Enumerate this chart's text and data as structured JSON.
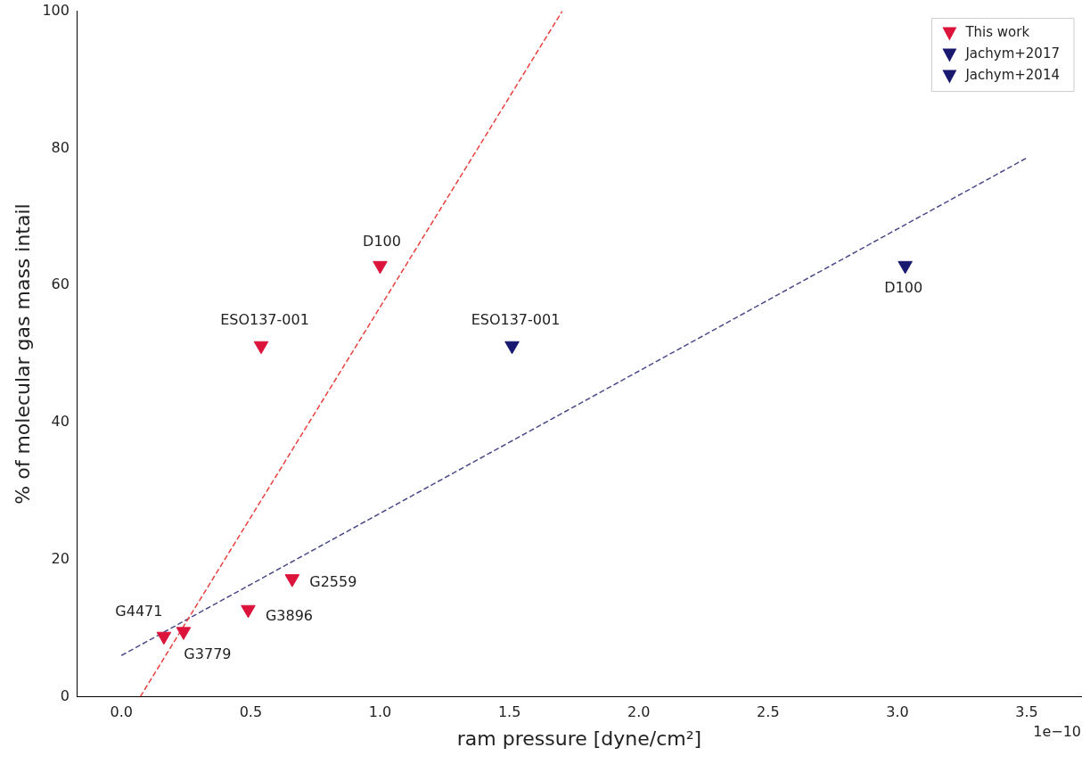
{
  "chart_data": {
    "type": "scatter",
    "xlabel": "ram pressure [dyne/cm²]",
    "ylabel": "% of molecular gas mass intail",
    "xlim": [
      -0.17,
      3.71
    ],
    "ylim": [
      0,
      100
    ],
    "xticks": [
      {
        "value": 0,
        "label": "0.0"
      },
      {
        "value": 0.5,
        "label": "0.5"
      },
      {
        "value": 1,
        "label": "1.0"
      },
      {
        "value": 1.5,
        "label": "1.5"
      },
      {
        "value": 2,
        "label": "2.0"
      },
      {
        "value": 2.5,
        "label": "2.5"
      },
      {
        "value": 3,
        "label": "3.0"
      },
      {
        "value": 3.5,
        "label": "3.5"
      }
    ],
    "yticks": [
      0,
      20,
      40,
      60,
      80,
      100
    ],
    "grid": false,
    "legend": "top right",
    "marker": "triangle",
    "series": [
      {
        "name": "This work",
        "color": "#dc143c",
        "x": [
          0.164,
          0.24,
          0.49,
          0.66,
          0.54,
          1.0
        ],
        "values": [
          8.8,
          9.5,
          12.7,
          17.2,
          51.2,
          62.9
        ]
      },
      {
        "name": "Jachym+2017",
        "color": "#191970",
        "x": [
          1.51
        ],
        "values": [
          51.2
        ]
      },
      {
        "name": "Jachym+2014",
        "color": "#191970",
        "x": [
          3.03
        ],
        "values": [
          62.9
        ]
      },
      {
        "type": "line",
        "color": "#e8413f",
        "line_style": "dashed",
        "marker": "none",
        "x": [
          0.073,
          1.704
        ],
        "values": [
          0,
          100
        ]
      },
      {
        "type": "line",
        "color": "#4a4a8a",
        "line_style": "dashed",
        "marker": "none",
        "x": [
          0,
          3.5
        ],
        "values": [
          6.0,
          78.6
        ]
      }
    ],
    "annotations": [
      {
        "text": "D100",
        "x": 1.0,
        "y": 62.9
      },
      {
        "text": "ESO137-001",
        "x": 0.54,
        "y": 51.2
      },
      {
        "text": "ESO137-001",
        "x": 1.51,
        "y": 51.2
      },
      {
        "text": "D100",
        "x": 3.03,
        "y": 62.9
      },
      {
        "text": "G2559",
        "x": 0.66,
        "y": 17.2
      },
      {
        "text": "G3896",
        "x": 0.49,
        "y": 12.7
      },
      {
        "text": "G4471",
        "x": 0.164,
        "y": 8.8
      },
      {
        "text": "G3779",
        "x": 0.24,
        "y": 9.5
      },
      "1e−10"
    ]
  }
}
